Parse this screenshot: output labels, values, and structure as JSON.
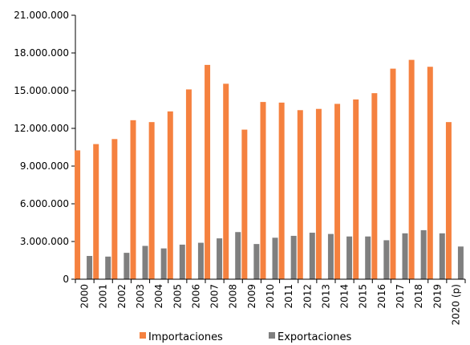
{
  "chart_data": {
    "type": "bar",
    "categories": [
      "2000",
      "2001",
      "2002",
      "2003",
      "2004",
      "2005",
      "2006",
      "2007",
      "2008",
      "2009",
      "2010",
      "2011",
      "2012",
      "2013",
      "2014",
      "2015",
      "2016",
      "2017",
      "2018",
      "2019",
      "2020 (p)"
    ],
    "series": [
      {
        "name": "Importaciones",
        "color": "#f5813f",
        "values": [
          10250000,
          10750000,
          11150000,
          12650000,
          12500000,
          13350000,
          15100000,
          17050000,
          15550000,
          11900000,
          14100000,
          14050000,
          13450000,
          13550000,
          13950000,
          14300000,
          14800000,
          16750000,
          17450000,
          16900000,
          12500000
        ]
      },
      {
        "name": "Exportaciones",
        "color": "#7f7f7f",
        "values": [
          1850000,
          1800000,
          2100000,
          2650000,
          2450000,
          2750000,
          2900000,
          3250000,
          3750000,
          2800000,
          3300000,
          3450000,
          3700000,
          3600000,
          3400000,
          3400000,
          3100000,
          3650000,
          3900000,
          3650000,
          2600000
        ]
      }
    ],
    "y_ticks": [
      0,
      3000000,
      6000000,
      9000000,
      12000000,
      15000000,
      18000000,
      21000000
    ],
    "y_tick_labels": [
      "0",
      "3.000.000",
      "6.000.000",
      "9.000.000",
      "12.000.000",
      "15.000.000",
      "18.000.000",
      "21.000.000"
    ],
    "ylim": [
      0,
      21000000
    ],
    "grid": false,
    "legend_position": "bottom"
  }
}
